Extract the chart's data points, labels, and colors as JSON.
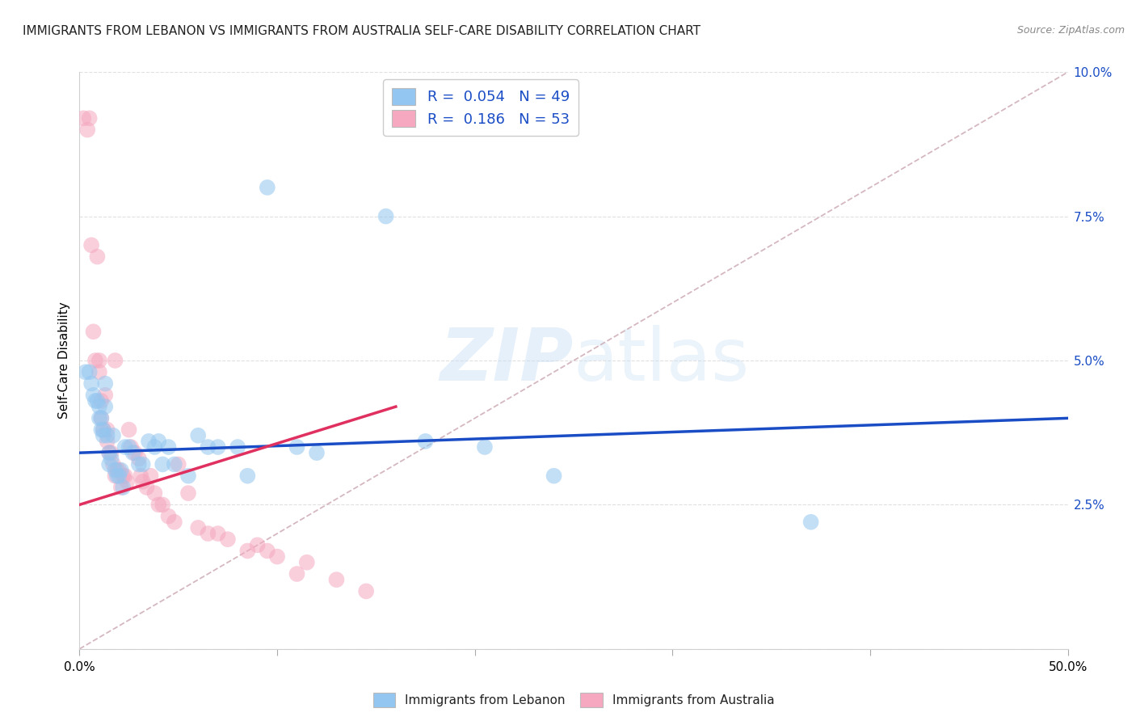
{
  "title": "IMMIGRANTS FROM LEBANON VS IMMIGRANTS FROM AUSTRALIA SELF-CARE DISABILITY CORRELATION CHART",
  "source": "Source: ZipAtlas.com",
  "ylabel": "Self-Care Disability",
  "xlim": [
    0.0,
    0.5
  ],
  "ylim": [
    0.0,
    0.1
  ],
  "xticks": [
    0.0,
    0.1,
    0.2,
    0.3,
    0.4,
    0.5
  ],
  "yticks": [
    0.0,
    0.025,
    0.05,
    0.075,
    0.1
  ],
  "yticklabels": [
    "",
    "2.5%",
    "5.0%",
    "7.5%",
    "10.0%"
  ],
  "legend1_r": "0.054",
  "legend1_n": "49",
  "legend2_r": "0.186",
  "legend2_n": "53",
  "color_blue": "#93C6F0",
  "color_pink": "#F5A8C0",
  "line_blue": "#1A4DC5",
  "line_pink": "#E03060",
  "line_diag_color": "#D0B0B8",
  "watermark_color": "#C8DEF5",
  "title_fontsize": 11,
  "source_fontsize": 9,
  "blue_x": [
    0.003,
    0.005,
    0.006,
    0.007,
    0.008,
    0.009,
    0.01,
    0.01,
    0.011,
    0.011,
    0.012,
    0.012,
    0.013,
    0.013,
    0.014,
    0.015,
    0.015,
    0.016,
    0.017,
    0.018,
    0.019,
    0.02,
    0.021,
    0.022,
    0.023,
    0.025,
    0.027,
    0.03,
    0.032,
    0.035,
    0.038,
    0.04,
    0.042,
    0.045,
    0.048,
    0.055,
    0.06,
    0.065,
    0.07,
    0.08,
    0.085,
    0.095,
    0.11,
    0.12,
    0.155,
    0.175,
    0.205,
    0.24,
    0.37
  ],
  "blue_y": [
    0.048,
    0.048,
    0.046,
    0.044,
    0.043,
    0.043,
    0.042,
    0.04,
    0.04,
    0.038,
    0.038,
    0.037,
    0.046,
    0.042,
    0.037,
    0.034,
    0.032,
    0.033,
    0.037,
    0.031,
    0.03,
    0.03,
    0.031,
    0.028,
    0.035,
    0.035,
    0.034,
    0.032,
    0.032,
    0.036,
    0.035,
    0.036,
    0.032,
    0.035,
    0.032,
    0.03,
    0.037,
    0.035,
    0.035,
    0.035,
    0.03,
    0.08,
    0.035,
    0.034,
    0.075,
    0.036,
    0.035,
    0.03,
    0.022
  ],
  "pink_x": [
    0.002,
    0.004,
    0.005,
    0.006,
    0.007,
    0.008,
    0.009,
    0.01,
    0.01,
    0.011,
    0.011,
    0.012,
    0.013,
    0.014,
    0.014,
    0.015,
    0.016,
    0.017,
    0.018,
    0.018,
    0.019,
    0.02,
    0.021,
    0.022,
    0.023,
    0.024,
    0.025,
    0.026,
    0.028,
    0.03,
    0.031,
    0.032,
    0.034,
    0.036,
    0.038,
    0.04,
    0.042,
    0.045,
    0.048,
    0.05,
    0.055,
    0.06,
    0.065,
    0.07,
    0.075,
    0.085,
    0.09,
    0.095,
    0.1,
    0.11,
    0.115,
    0.13,
    0.145
  ],
  "pink_y": [
    0.092,
    0.09,
    0.092,
    0.07,
    0.055,
    0.05,
    0.068,
    0.05,
    0.048,
    0.043,
    0.04,
    0.038,
    0.044,
    0.038,
    0.036,
    0.034,
    0.034,
    0.032,
    0.05,
    0.03,
    0.031,
    0.031,
    0.028,
    0.03,
    0.03,
    0.029,
    0.038,
    0.035,
    0.034,
    0.033,
    0.03,
    0.029,
    0.028,
    0.03,
    0.027,
    0.025,
    0.025,
    0.023,
    0.022,
    0.032,
    0.027,
    0.021,
    0.02,
    0.02,
    0.019,
    0.017,
    0.018,
    0.017,
    0.016,
    0.013,
    0.015,
    0.012,
    0.01
  ],
  "blue_line_x0": 0.0,
  "blue_line_y0": 0.034,
  "blue_line_x1": 0.5,
  "blue_line_y1": 0.04,
  "pink_line_x0": 0.0,
  "pink_line_y0": 0.025,
  "pink_line_x1": 0.16,
  "pink_line_y1": 0.042
}
